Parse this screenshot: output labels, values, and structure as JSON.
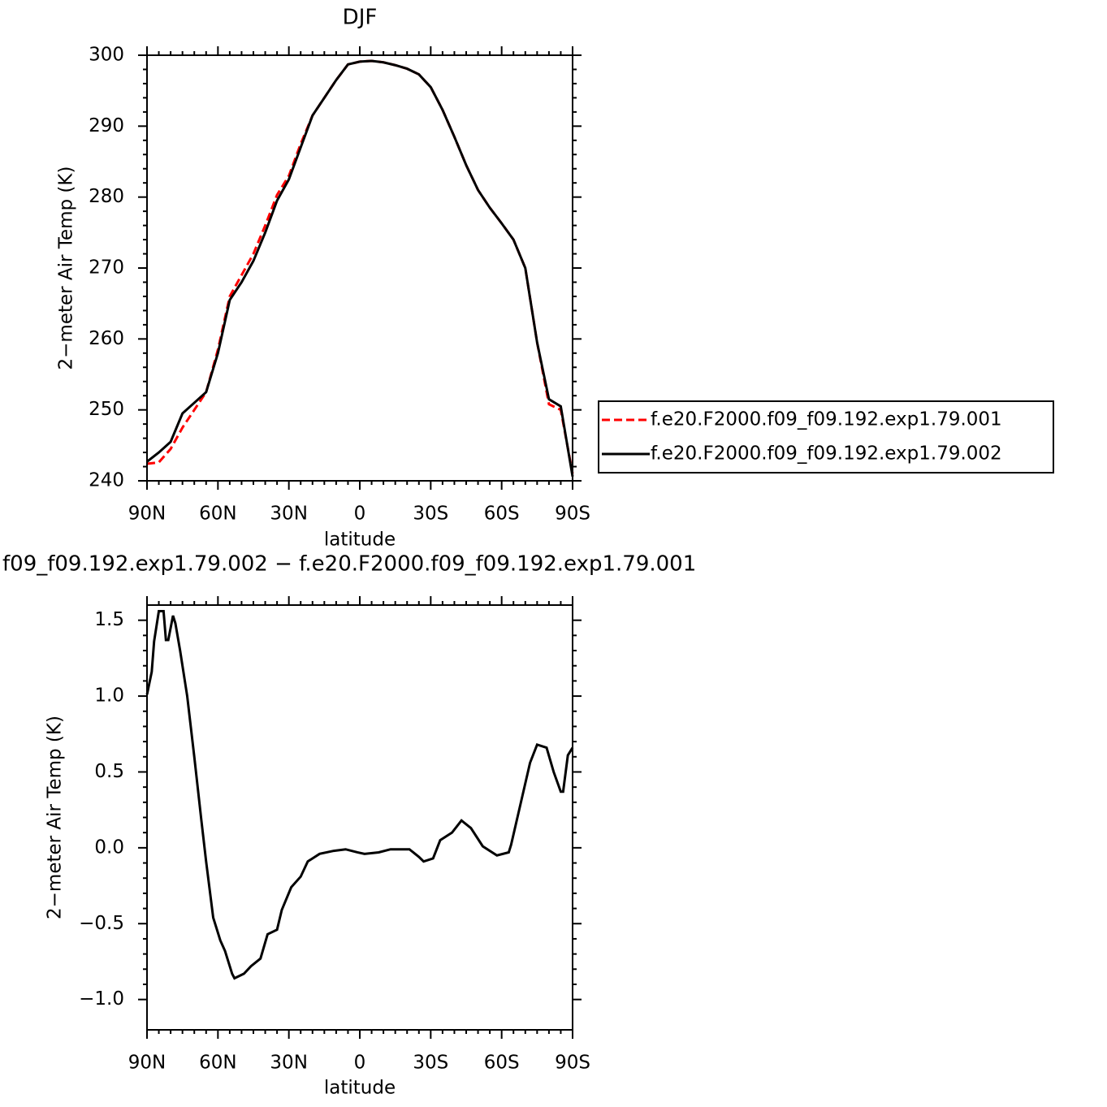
{
  "chart_data": [
    {
      "type": "line",
      "title": "DJF",
      "x_label": "latitude",
      "y_label": "2−meter Air Temp (K)",
      "x": [
        90,
        85,
        80,
        75,
        70,
        65,
        60,
        55,
        50,
        45,
        40,
        35,
        30,
        25,
        20,
        15,
        10,
        5,
        0,
        -5,
        -10,
        -15,
        -20,
        -25,
        -30,
        -35,
        -40,
        -45,
        -50,
        -55,
        -60,
        -65,
        -70,
        -75,
        -80,
        -85,
        -90
      ],
      "series": [
        {
          "name": "f.e20.F2000.f09_f09.192.exp1.79.001",
          "color": "#ff0000",
          "linestyle": "dashed",
          "values": [
            242.4,
            242.6,
            244.5,
            247.5,
            250.0,
            252.5,
            258.5,
            266,
            269,
            272,
            276,
            280.3,
            283,
            287.5,
            291.5,
            294,
            296.5,
            298.7,
            299.1,
            299.2,
            299.0,
            298.6,
            298.1,
            297.3,
            295.5,
            292.3,
            288.5,
            284.5,
            281,
            278.5,
            276.3,
            274,
            270,
            259.5,
            250.8,
            250,
            241.0
          ]
        },
        {
          "name": "f.e20.F2000.f09_f09.192.exp1.79.002",
          "color": "#000000",
          "linestyle": "solid",
          "values": [
            242.7,
            244.0,
            245.5,
            249.5,
            251.0,
            252.5,
            258,
            265.5,
            268,
            271,
            275,
            279.5,
            282.5,
            287,
            291.5,
            294,
            296.5,
            298.7,
            299.1,
            299.2,
            299.0,
            298.6,
            298.1,
            297.3,
            295.5,
            292.3,
            288.5,
            284.5,
            281,
            278.5,
            276.3,
            274,
            270,
            259.5,
            251.5,
            250.5,
            240.6
          ]
        }
      ],
      "xlim": [
        90,
        -90
      ],
      "xticks": [
        {
          "value": 90,
          "label": "90N"
        },
        {
          "value": 60,
          "label": "60N"
        },
        {
          "value": 30,
          "label": "30N"
        },
        0,
        {
          "value": -30,
          "label": "30S"
        },
        {
          "value": -60,
          "label": "60S"
        },
        {
          "value": -90,
          "label": "90S"
        }
      ],
      "ylim": [
        240,
        300
      ],
      "yticks": [
        240,
        250,
        260,
        270,
        280,
        290,
        300
      ],
      "legend": "right"
    },
    {
      "type": "line",
      "title": "f09_f09.192.exp1.79.002 − f.e20.F2000.f09_f09.192.exp1.79.001",
      "x_label": "latitude",
      "y_label": "2−meter Air Temp (K)",
      "x": [
        90,
        88,
        87,
        85,
        83,
        82,
        81,
        79,
        78,
        76,
        75,
        73,
        70,
        67,
        65,
        62,
        59,
        57,
        54,
        53,
        49,
        46,
        42,
        39,
        35,
        33,
        29,
        25,
        22,
        17,
        11,
        6,
        1,
        -2,
        -8,
        -13,
        -18,
        -21,
        -25,
        -27,
        -31,
        -34,
        -39,
        -43,
        -47,
        -52,
        -58,
        -63,
        -64,
        -68,
        -72,
        -75,
        -79,
        -82,
        -85,
        -86,
        -88,
        -90
      ],
      "series": [
        {
          "name": null,
          "color": "#000000",
          "linestyle": "solid",
          "values": [
            1.01,
            1.16,
            1.36,
            1.56,
            1.56,
            1.37,
            1.37,
            1.53,
            1.48,
            1.3,
            1.2,
            1.0,
            0.6,
            0.18,
            -0.09,
            -0.46,
            -0.61,
            -0.68,
            -0.83,
            -0.86,
            -0.83,
            -0.78,
            -0.73,
            -0.57,
            -0.54,
            -0.41,
            -0.26,
            -0.19,
            -0.09,
            -0.04,
            -0.02,
            -0.01,
            -0.03,
            -0.04,
            -0.03,
            -0.01,
            -0.01,
            -0.01,
            -0.06,
            -0.09,
            -0.07,
            0.05,
            0.1,
            0.18,
            0.13,
            0.01,
            -0.05,
            -0.03,
            0.02,
            0.29,
            0.56,
            0.68,
            0.66,
            0.5,
            0.37,
            0.37,
            0.61,
            0.66
          ]
        }
      ],
      "xlim": [
        90,
        -90
      ],
      "xticks": [
        {
          "value": 90,
          "label": "90N"
        },
        {
          "value": 60,
          "label": "60N"
        },
        {
          "value": 30,
          "label": "30N"
        },
        0,
        {
          "value": -30,
          "label": "30S"
        },
        {
          "value": -60,
          "label": "60S"
        },
        {
          "value": -90,
          "label": "90S"
        }
      ],
      "ylim": [
        -1.2,
        1.6
      ],
      "yticks": [
        {
          "value": -1,
          "label": "−1.0"
        },
        {
          "value": -0.5,
          "label": "−0.5"
        },
        {
          "value": 0,
          "label": "0.0"
        },
        0.5,
        {
          "value": 1,
          "label": "1.0"
        },
        1.5
      ]
    }
  ]
}
